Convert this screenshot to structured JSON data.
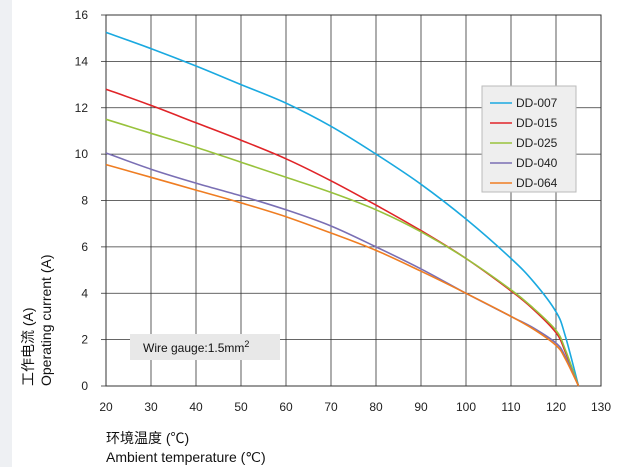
{
  "chart_data": {
    "type": "line",
    "xlabel_cn": "环境温度 (℃)",
    "xlabel_en": "Ambient temperature (℃)",
    "ylabel_cn": "工作电流 (A)",
    "ylabel_en": "Operating current (A)",
    "xlim": [
      20,
      130
    ],
    "ylim": [
      0,
      16
    ],
    "xticks": [
      "20",
      "30",
      "40",
      "50",
      "60",
      "70",
      "80",
      "90",
      "100",
      "110",
      "120",
      "130"
    ],
    "yticks": [
      "0",
      "2",
      "4",
      "6",
      "8",
      "10",
      "12",
      "14",
      "16"
    ],
    "grid": true,
    "legend_position": "top-right",
    "annotation": {
      "text": "Wire gauge:1.5mm",
      "superscript": "2"
    },
    "series": [
      {
        "name": "DD-007",
        "color": "#1aa9e0",
        "x": [
          20,
          30,
          40,
          50,
          60,
          70,
          80,
          90,
          100,
          110,
          115,
          120,
          122,
          125
        ],
        "y": [
          15.25,
          14.55,
          13.8,
          13.0,
          12.2,
          11.2,
          10.0,
          8.7,
          7.2,
          5.5,
          4.5,
          3.2,
          2.2,
          0
        ]
      },
      {
        "name": "DD-015",
        "color": "#e02428",
        "x": [
          20,
          30,
          40,
          50,
          60,
          70,
          80,
          90,
          100,
          110,
          115,
          120,
          122,
          125
        ],
        "y": [
          12.8,
          12.1,
          11.35,
          10.6,
          9.8,
          8.85,
          7.8,
          6.7,
          5.5,
          4.1,
          3.3,
          2.3,
          1.5,
          0
        ]
      },
      {
        "name": "DD-025",
        "color": "#98c23c",
        "x": [
          20,
          30,
          40,
          50,
          60,
          70,
          80,
          90,
          100,
          110,
          115,
          120,
          122,
          125
        ],
        "y": [
          11.5,
          10.9,
          10.3,
          9.65,
          9.0,
          8.35,
          7.6,
          6.65,
          5.5,
          4.15,
          3.35,
          2.4,
          1.6,
          0
        ]
      },
      {
        "name": "DD-040",
        "color": "#7a6fb4",
        "x": [
          20,
          30,
          40,
          50,
          60,
          70,
          80,
          90,
          100,
          110,
          115,
          120,
          122,
          125
        ],
        "y": [
          10.05,
          9.35,
          8.75,
          8.2,
          7.6,
          6.9,
          6.0,
          5.05,
          4.0,
          3.0,
          2.5,
          1.85,
          1.3,
          0
        ]
      },
      {
        "name": "DD-064",
        "color": "#ef7d22",
        "x": [
          20,
          30,
          40,
          50,
          60,
          70,
          80,
          90,
          100,
          110,
          115,
          120,
          122,
          125
        ],
        "y": [
          9.55,
          9.0,
          8.45,
          7.9,
          7.3,
          6.6,
          5.85,
          4.95,
          4.0,
          3.0,
          2.45,
          1.75,
          1.2,
          0
        ]
      }
    ]
  }
}
